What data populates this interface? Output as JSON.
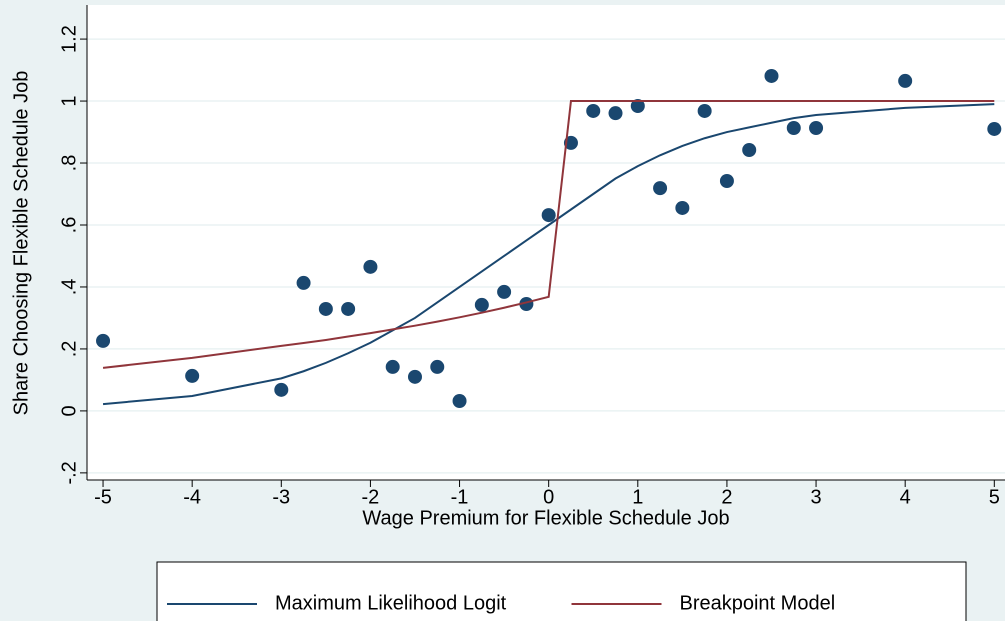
{
  "chart_data": {
    "type": "scatter",
    "x_label": "Wage Premium for Flexible Schedule Job",
    "y_label": "Share Choosing Flexible Schedule Job",
    "x": [
      -5,
      -4,
      -3,
      -2.75,
      -2.5,
      -2.25,
      -2,
      -1.75,
      -1.5,
      -1.25,
      -1,
      -0.75,
      -0.5,
      -0.25,
      0,
      0.25,
      0.5,
      0.75,
      1,
      1.25,
      1.5,
      1.75,
      2,
      2.25,
      2.5,
      2.75,
      3,
      4,
      5
    ],
    "series": [
      {
        "type": "scatter",
        "color": "#1a476f",
        "values": [
          0.226,
          0.113,
          0.068,
          0.413,
          0.329,
          0.329,
          0.465,
          0.142,
          0.11,
          0.142,
          0.032,
          0.342,
          0.384,
          0.345,
          0.632,
          0.865,
          0.968,
          0.961,
          0.984,
          0.719,
          0.655,
          0.968,
          0.742,
          0.842,
          1.081,
          0.913,
          0.913,
          1.065,
          0.91
        ]
      },
      {
        "type": "line",
        "name": "Maximum Likelihood Logit",
        "color": "#1a476f",
        "values": [
          0.022,
          0.048,
          0.105,
          0.128,
          0.155,
          0.186,
          0.22,
          0.26,
          0.3,
          0.35,
          0.4,
          0.45,
          0.5,
          0.55,
          0.6,
          0.65,
          0.7,
          0.75,
          0.79,
          0.825,
          0.855,
          0.88,
          0.9,
          0.915,
          0.93,
          0.945,
          0.955,
          0.978,
          0.99
        ]
      },
      {
        "type": "line",
        "name": "Breakpoint Model",
        "color": "#90353b",
        "values": [
          0.139,
          0.171,
          0.21,
          0.219,
          0.229,
          0.24,
          0.251,
          0.263,
          0.275,
          0.288,
          0.302,
          0.317,
          0.333,
          0.35,
          0.368,
          1,
          1,
          1,
          1,
          1,
          1,
          1,
          1,
          1,
          1,
          1,
          1,
          1,
          1
        ]
      }
    ],
    "xlim": [
      -5.18,
      5.12
    ],
    "ylim": [
      -0.223,
      1.31
    ],
    "xticks": [
      -5,
      -4,
      -3,
      -2,
      -1,
      0,
      1,
      2,
      3,
      4,
      5
    ],
    "yticks": [
      {
        "value": -0.2,
        "label": "-.2"
      },
      0,
      {
        "value": 0.2,
        "label": ".2"
      },
      {
        "value": 0.4,
        "label": ".4"
      },
      {
        "value": 0.6,
        "label": ".6"
      },
      {
        "value": 0.8,
        "label": ".8"
      },
      1,
      1.2
    ],
    "grid": true,
    "legend": "bottom"
  }
}
